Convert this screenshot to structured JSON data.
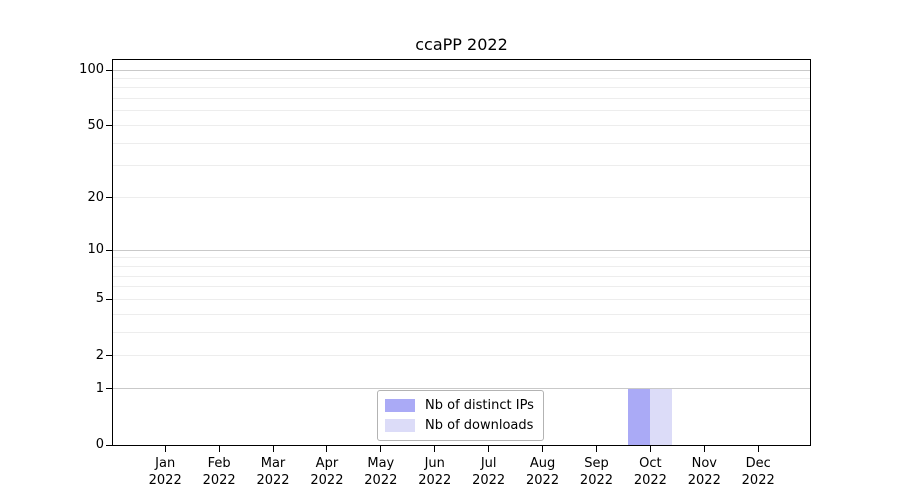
{
  "chart_data": {
    "type": "bar",
    "title": "ccaPP 2022",
    "x_labels": [
      {
        "month": "Jan",
        "year": "2022"
      },
      {
        "month": "Feb",
        "year": "2022"
      },
      {
        "month": "Mar",
        "year": "2022"
      },
      {
        "month": "Apr",
        "year": "2022"
      },
      {
        "month": "May",
        "year": "2022"
      },
      {
        "month": "Jun",
        "year": "2022"
      },
      {
        "month": "Jul",
        "year": "2022"
      },
      {
        "month": "Aug",
        "year": "2022"
      },
      {
        "month": "Sep",
        "year": "2022"
      },
      {
        "month": "Oct",
        "year": "2022"
      },
      {
        "month": "Nov",
        "year": "2022"
      },
      {
        "month": "Dec",
        "year": "2022"
      }
    ],
    "series": [
      {
        "name": "Nb of distinct IPs",
        "color": "#aaaaf6",
        "values": [
          0,
          0,
          0,
          0,
          0,
          0,
          0,
          0,
          0,
          1,
          0,
          0
        ]
      },
      {
        "name": "Nb of downloads",
        "color": "#dcdcf8",
        "values": [
          0,
          0,
          0,
          0,
          0,
          0,
          0,
          0,
          0,
          1,
          0,
          0
        ]
      }
    ],
    "y_axis": {
      "scale": "log10(1+x)",
      "tick_values": [
        100,
        50,
        20,
        10,
        5,
        2,
        1,
        0
      ],
      "gridlines_major": [
        1,
        10,
        100
      ],
      "gridlines_minor": [
        2,
        3,
        4,
        5,
        6,
        7,
        8,
        9,
        20,
        30,
        40,
        50,
        60,
        70,
        80,
        90
      ],
      "range": [
        0,
        113
      ]
    },
    "legend": {
      "position": "bottom-center",
      "entries": [
        "Nb of distinct IPs",
        "Nb of downloads"
      ]
    },
    "grid": true
  },
  "colors": {
    "grid_minor": "#ededed",
    "grid_major": "#c9c9c9",
    "axis": "#000000",
    "text": "#000000",
    "legend_border": "#b3b3b3",
    "bar_distinct_ips": "#aaaaf6",
    "bar_downloads": "#dcdcf8"
  }
}
